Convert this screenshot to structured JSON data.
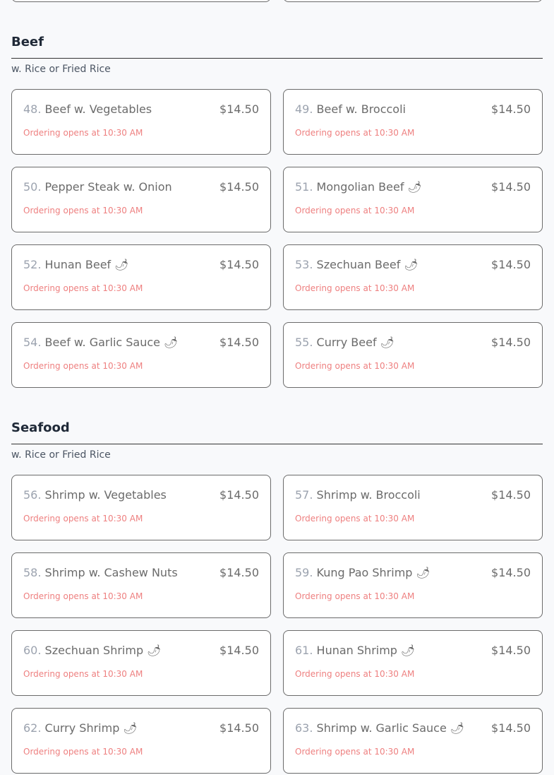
{
  "status_text": "Ordering opens at 10:30 AM",
  "spicy_glyph": "🌶",
  "colors": {
    "background": "#f8f9fb",
    "status": "#ee8080",
    "heading": "#1f2937"
  },
  "sections": [
    {
      "title": "Beef",
      "subtitle": "w. Rice or Fried Rice",
      "items": [
        {
          "number": "48.",
          "name": "Beef w. Vegetables",
          "price": "$14.50",
          "spicy": false
        },
        {
          "number": "49.",
          "name": "Beef w. Broccoli",
          "price": "$14.50",
          "spicy": false
        },
        {
          "number": "50.",
          "name": "Pepper Steak w. Onion",
          "price": "$14.50",
          "spicy": false
        },
        {
          "number": "51.",
          "name": "Mongolian Beef",
          "price": "$14.50",
          "spicy": true
        },
        {
          "number": "52.",
          "name": "Hunan Beef",
          "price": "$14.50",
          "spicy": true
        },
        {
          "number": "53.",
          "name": "Szechuan Beef",
          "price": "$14.50",
          "spicy": true
        },
        {
          "number": "54.",
          "name": "Beef w. Garlic Sauce",
          "price": "$14.50",
          "spicy": true
        },
        {
          "number": "55.",
          "name": "Curry Beef",
          "price": "$14.50",
          "spicy": true
        }
      ]
    },
    {
      "title": "Seafood",
      "subtitle": "w. Rice or Fried Rice",
      "items": [
        {
          "number": "56.",
          "name": "Shrimp w. Vegetables",
          "price": "$14.50",
          "spicy": false
        },
        {
          "number": "57.",
          "name": "Shrimp w. Broccoli",
          "price": "$14.50",
          "spicy": false
        },
        {
          "number": "58.",
          "name": "Shrimp w. Cashew Nuts",
          "price": "$14.50",
          "spicy": false
        },
        {
          "number": "59.",
          "name": "Kung Pao Shrimp",
          "price": "$14.50",
          "spicy": true
        },
        {
          "number": "60.",
          "name": "Szechuan Shrimp",
          "price": "$14.50",
          "spicy": true
        },
        {
          "number": "61.",
          "name": "Hunan Shrimp",
          "price": "$14.50",
          "spicy": true
        },
        {
          "number": "62.",
          "name": "Curry Shrimp",
          "price": "$14.50",
          "spicy": true
        },
        {
          "number": "63.",
          "name": "Shrimp w. Garlic Sauce",
          "price": "$14.50",
          "spicy": true
        }
      ]
    }
  ]
}
